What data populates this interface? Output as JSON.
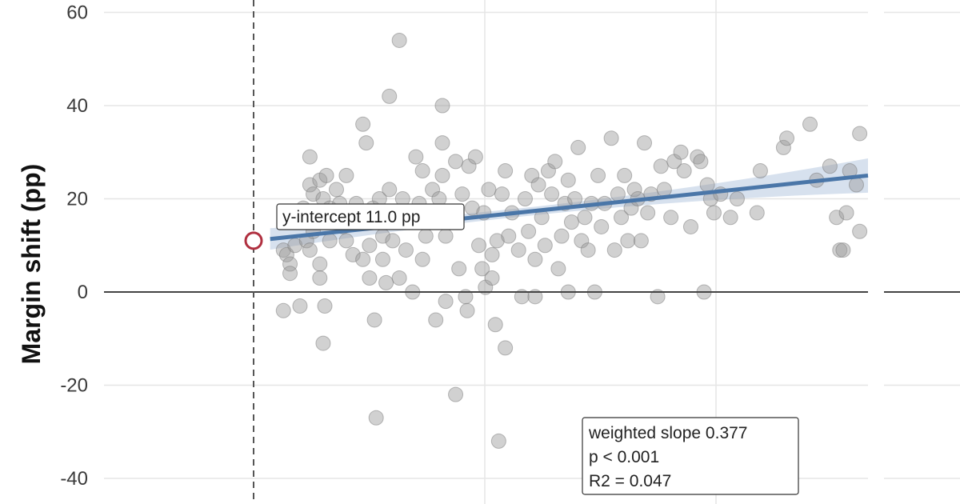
{
  "chart_data": {
    "type": "scatter",
    "ylabel": "Margin shift (pp)",
    "ylim": [
      -40,
      60
    ],
    "yticks": [
      -40,
      -20,
      0,
      20,
      40,
      60
    ],
    "ytick_labels": [
      "-40",
      "-20",
      "0",
      "20",
      "40",
      "60"
    ],
    "grid": true,
    "reference_line_y": 0,
    "colors": {
      "points": "#999999",
      "fit": "#4a76a8",
      "band": "#c9d7e8",
      "intercept_marker": "#b03040",
      "zero_line": "#444444"
    },
    "fit": {
      "intercept": 11.0,
      "slope": 0.377
    },
    "annotations": {
      "intercept_label": "y-intercept 11.0 pp",
      "stats": [
        "weighted slope 0.377",
        "p < 0.001",
        "R2 = 0.047"
      ]
    },
    "points": [
      [
        1.8,
        9
      ],
      [
        1.8,
        -4
      ],
      [
        2.0,
        15
      ],
      [
        2.0,
        8
      ],
      [
        2.2,
        6
      ],
      [
        2.2,
        4
      ],
      [
        2.5,
        10
      ],
      [
        2.8,
        -3
      ],
      [
        3.0,
        18
      ],
      [
        3.2,
        11
      ],
      [
        3.4,
        9
      ],
      [
        3.4,
        23
      ],
      [
        3.4,
        29
      ],
      [
        3.6,
        21
      ],
      [
        3.6,
        13
      ],
      [
        3.8,
        16
      ],
      [
        4.0,
        24
      ],
      [
        4.0,
        6
      ],
      [
        4.0,
        3
      ],
      [
        4.2,
        20
      ],
      [
        4.2,
        -11
      ],
      [
        4.3,
        -3
      ],
      [
        4.4,
        25
      ],
      [
        4.6,
        11
      ],
      [
        4.6,
        18
      ],
      [
        4.8,
        17
      ],
      [
        5.0,
        22
      ],
      [
        5.2,
        19
      ],
      [
        5.4,
        14
      ],
      [
        5.6,
        11
      ],
      [
        5.6,
        25
      ],
      [
        5.8,
        17
      ],
      [
        6.0,
        8
      ],
      [
        6.2,
        19
      ],
      [
        6.6,
        36
      ],
      [
        6.6,
        7
      ],
      [
        6.8,
        32
      ],
      [
        7.0,
        10
      ],
      [
        7.0,
        3
      ],
      [
        7.2,
        18
      ],
      [
        7.3,
        -6
      ],
      [
        7.4,
        -27
      ],
      [
        7.6,
        16
      ],
      [
        7.6,
        20
      ],
      [
        7.8,
        12
      ],
      [
        7.8,
        7
      ],
      [
        8.0,
        2
      ],
      [
        8.2,
        42
      ],
      [
        8.2,
        22
      ],
      [
        8.4,
        11
      ],
      [
        8.6,
        15
      ],
      [
        8.8,
        54
      ],
      [
        8.8,
        3
      ],
      [
        9.0,
        20
      ],
      [
        9.2,
        9
      ],
      [
        9.4,
        17
      ],
      [
        9.6,
        0
      ],
      [
        9.8,
        29
      ],
      [
        10.0,
        19
      ],
      [
        10.2,
        26
      ],
      [
        10.2,
        7
      ],
      [
        10.4,
        12
      ],
      [
        10.6,
        17
      ],
      [
        10.8,
        22
      ],
      [
        11.0,
        -6
      ],
      [
        11.2,
        20
      ],
      [
        11.4,
        40
      ],
      [
        11.4,
        32
      ],
      [
        11.4,
        25
      ],
      [
        11.6,
        -2
      ],
      [
        11.6,
        12
      ],
      [
        12.0,
        15
      ],
      [
        12.2,
        -22
      ],
      [
        12.2,
        28
      ],
      [
        12.4,
        5
      ],
      [
        12.6,
        21
      ],
      [
        12.8,
        -1
      ],
      [
        12.9,
        -4
      ],
      [
        13.0,
        27
      ],
      [
        13.2,
        18
      ],
      [
        13.4,
        29
      ],
      [
        13.6,
        10
      ],
      [
        13.8,
        5
      ],
      [
        13.9,
        17
      ],
      [
        14.0,
        1
      ],
      [
        14.2,
        22
      ],
      [
        14.4,
        8
      ],
      [
        14.4,
        3
      ],
      [
        14.6,
        -7
      ],
      [
        14.7,
        11
      ],
      [
        14.8,
        -32
      ],
      [
        15.0,
        21
      ],
      [
        15.2,
        -12
      ],
      [
        15.2,
        26
      ],
      [
        15.4,
        12
      ],
      [
        15.6,
        17
      ],
      [
        16.0,
        9
      ],
      [
        16.2,
        -1
      ],
      [
        16.4,
        20
      ],
      [
        16.6,
        13
      ],
      [
        16.8,
        25
      ],
      [
        17.0,
        7
      ],
      [
        17.0,
        -1
      ],
      [
        17.2,
        23
      ],
      [
        17.4,
        16
      ],
      [
        17.6,
        10
      ],
      [
        17.8,
        26
      ],
      [
        18.0,
        21
      ],
      [
        18.2,
        28
      ],
      [
        18.4,
        5
      ],
      [
        18.6,
        12
      ],
      [
        18.8,
        19
      ],
      [
        19.0,
        0
      ],
      [
        19.0,
        24
      ],
      [
        19.2,
        15
      ],
      [
        19.4,
        20
      ],
      [
        19.6,
        31
      ],
      [
        19.8,
        11
      ],
      [
        20.0,
        16
      ],
      [
        20.2,
        9
      ],
      [
        20.4,
        19
      ],
      [
        20.6,
        0
      ],
      [
        20.8,
        25
      ],
      [
        21.0,
        14
      ],
      [
        21.2,
        19
      ],
      [
        21.6,
        33
      ],
      [
        21.8,
        9
      ],
      [
        22.0,
        21
      ],
      [
        22.2,
        16
      ],
      [
        22.4,
        25
      ],
      [
        22.6,
        11
      ],
      [
        22.8,
        18
      ],
      [
        23.0,
        22
      ],
      [
        23.2,
        20
      ],
      [
        23.4,
        11
      ],
      [
        23.6,
        32
      ],
      [
        23.8,
        17
      ],
      [
        24.0,
        21
      ],
      [
        24.4,
        -1
      ],
      [
        24.6,
        27
      ],
      [
        24.8,
        22
      ],
      [
        25.2,
        16
      ],
      [
        25.4,
        28
      ],
      [
        25.8,
        30
      ],
      [
        26.0,
        26
      ],
      [
        26.4,
        14
      ],
      [
        26.8,
        29
      ],
      [
        27.0,
        28
      ],
      [
        27.2,
        0
      ],
      [
        27.4,
        23
      ],
      [
        27.6,
        20
      ],
      [
        27.8,
        17
      ],
      [
        28.2,
        21
      ],
      [
        28.8,
        16
      ],
      [
        29.2,
        20
      ],
      [
        30.6,
        26
      ],
      [
        30.4,
        17
      ],
      [
        32.0,
        31
      ],
      [
        32.2,
        33
      ],
      [
        33.6,
        36
      ],
      [
        34.0,
        24
      ],
      [
        34.8,
        27
      ],
      [
        35.2,
        16
      ],
      [
        35.4,
        9
      ],
      [
        35.6,
        9
      ],
      [
        35.8,
        17
      ],
      [
        36.0,
        26
      ],
      [
        36.4,
        23
      ],
      [
        36.6,
        13
      ],
      [
        36.6,
        34
      ]
    ]
  }
}
